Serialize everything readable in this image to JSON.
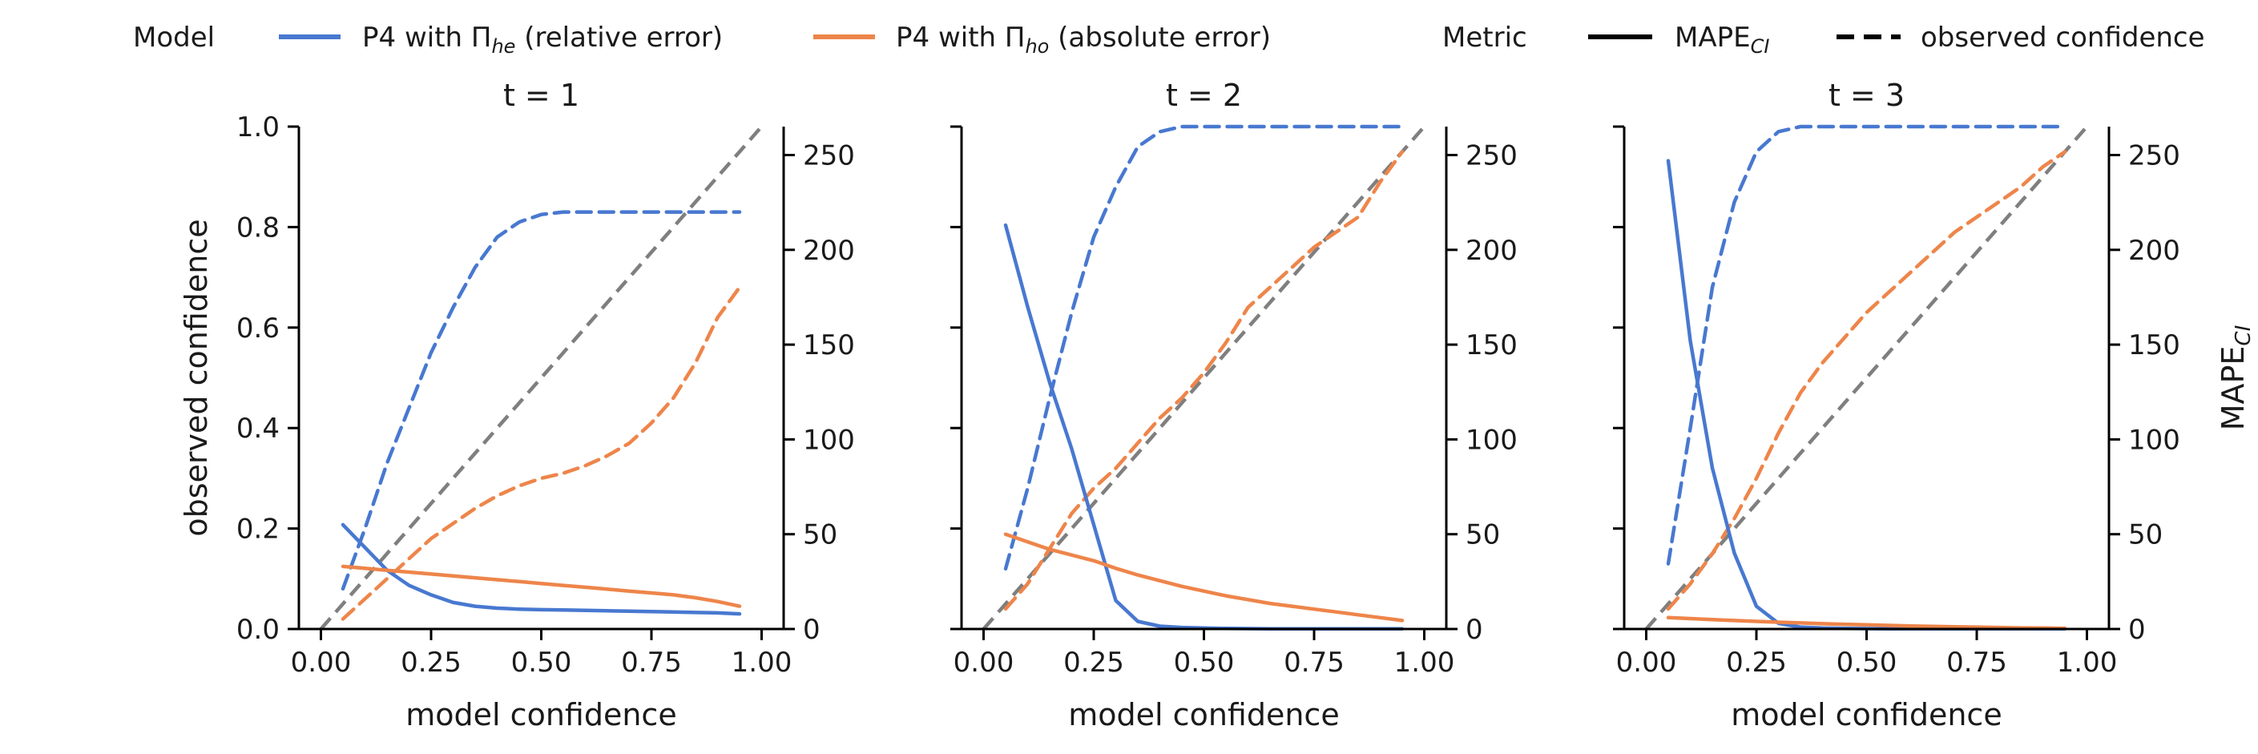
{
  "legend": {
    "model_title": "Model",
    "model_entries": [
      {
        "label": "P4 with Π",
        "sub": "he",
        "suffix": " (relative error)",
        "color": "#4878d0"
      },
      {
        "label": "P4 with Π",
        "sub": "ho",
        "suffix": " (absolute error)",
        "color": "#ee854a"
      }
    ],
    "metric_title": "Metric",
    "metric_entries": [
      {
        "label": "MAPE",
        "sub": "CI",
        "style": "solid"
      },
      {
        "label": "observed confidence",
        "style": "dashed"
      }
    ]
  },
  "colors": {
    "he": "#4878d0",
    "ho": "#ee854a",
    "diagonal": "#7f7f7f"
  },
  "chart_data": [
    {
      "type": "line",
      "title": "t = 1",
      "xlabel": "model confidence",
      "ylabel": "observed confidence",
      "ylabel_right": "",
      "xlim": [
        -0.05,
        1.05
      ],
      "ylim": [
        0,
        1
      ],
      "ylim_right": [
        0,
        265
      ],
      "xticks": [
        "0.00",
        "0.25",
        "0.50",
        "0.75",
        "1.00"
      ],
      "yticks": [
        "0.0",
        "0.2",
        "0.4",
        "0.6",
        "0.8",
        "1.0"
      ],
      "yticks_right": [
        "0",
        "50",
        "100",
        "150",
        "200",
        "250"
      ],
      "series": [
        {
          "model": "he",
          "metric": "observed confidence",
          "axis": "left",
          "x": [
            0.05,
            0.1,
            0.15,
            0.2,
            0.25,
            0.3,
            0.35,
            0.4,
            0.45,
            0.5,
            0.55,
            0.6,
            0.65,
            0.7,
            0.75,
            0.8,
            0.85,
            0.9,
            0.95
          ],
          "y": [
            0.08,
            0.2,
            0.33,
            0.44,
            0.55,
            0.64,
            0.72,
            0.78,
            0.81,
            0.825,
            0.83,
            0.83,
            0.83,
            0.83,
            0.83,
            0.83,
            0.83,
            0.83,
            0.83
          ]
        },
        {
          "model": "ho",
          "metric": "observed confidence",
          "axis": "left",
          "x": [
            0.05,
            0.1,
            0.15,
            0.2,
            0.25,
            0.3,
            0.35,
            0.4,
            0.45,
            0.5,
            0.55,
            0.6,
            0.65,
            0.7,
            0.75,
            0.8,
            0.85,
            0.9,
            0.95
          ],
          "y": [
            0.02,
            0.06,
            0.1,
            0.14,
            0.18,
            0.21,
            0.24,
            0.265,
            0.285,
            0.3,
            0.31,
            0.325,
            0.345,
            0.37,
            0.41,
            0.46,
            0.53,
            0.62,
            0.68
          ]
        },
        {
          "model": "he",
          "metric": "MAPE",
          "axis": "right",
          "x": [
            0.05,
            0.1,
            0.15,
            0.2,
            0.25,
            0.3,
            0.35,
            0.4,
            0.45,
            0.5,
            0.55,
            0.6,
            0.65,
            0.7,
            0.75,
            0.8,
            0.85,
            0.9,
            0.95
          ],
          "y": [
            55,
            43,
            31,
            23,
            18,
            14,
            12,
            11,
            10.5,
            10.2,
            10,
            9.8,
            9.6,
            9.4,
            9.2,
            9,
            8.7,
            8.5,
            8
          ]
        },
        {
          "model": "ho",
          "metric": "MAPE",
          "axis": "right",
          "x": [
            0.05,
            0.1,
            0.15,
            0.2,
            0.25,
            0.3,
            0.35,
            0.4,
            0.45,
            0.5,
            0.55,
            0.6,
            0.65,
            0.7,
            0.75,
            0.8,
            0.85,
            0.9,
            0.95
          ],
          "y": [
            33,
            32,
            31,
            30,
            29,
            28,
            27,
            26,
            25,
            24,
            23,
            22,
            21,
            20,
            19,
            18,
            16.5,
            14.5,
            12
          ]
        }
      ]
    },
    {
      "type": "line",
      "title": "t = 2",
      "xlabel": "model confidence",
      "ylabel": "",
      "ylabel_right": "",
      "xlim": [
        -0.05,
        1.05
      ],
      "ylim": [
        0,
        1
      ],
      "ylim_right": [
        0,
        265
      ],
      "xticks": [
        "0.00",
        "0.25",
        "0.50",
        "0.75",
        "1.00"
      ],
      "yticks": [],
      "yticks_right": [
        "0",
        "50",
        "100",
        "150",
        "200",
        "250"
      ],
      "series": [
        {
          "model": "he",
          "metric": "observed confidence",
          "axis": "left",
          "x": [
            0.05,
            0.1,
            0.15,
            0.2,
            0.25,
            0.3,
            0.35,
            0.4,
            0.45,
            0.5,
            0.55,
            0.6,
            0.65,
            0.7,
            0.75,
            0.8,
            0.85,
            0.9,
            0.95
          ],
          "y": [
            0.12,
            0.28,
            0.46,
            0.63,
            0.78,
            0.88,
            0.96,
            0.99,
            1.0,
            1.0,
            1.0,
            1.0,
            1.0,
            1.0,
            1.0,
            1.0,
            1.0,
            1.0,
            1.0
          ]
        },
        {
          "model": "ho",
          "metric": "observed confidence",
          "axis": "left",
          "x": [
            0.05,
            0.1,
            0.15,
            0.2,
            0.25,
            0.3,
            0.35,
            0.4,
            0.45,
            0.5,
            0.55,
            0.6,
            0.65,
            0.7,
            0.75,
            0.8,
            0.85,
            0.9,
            0.95
          ],
          "y": [
            0.04,
            0.09,
            0.16,
            0.23,
            0.28,
            0.32,
            0.37,
            0.42,
            0.46,
            0.51,
            0.57,
            0.64,
            0.68,
            0.72,
            0.76,
            0.79,
            0.82,
            0.89,
            0.95
          ]
        },
        {
          "model": "he",
          "metric": "MAPE",
          "axis": "right",
          "x": [
            0.05,
            0.1,
            0.15,
            0.2,
            0.25,
            0.3,
            0.35,
            0.4,
            0.45,
            0.5,
            0.55,
            0.6,
            0.65,
            0.7,
            0.75,
            0.8,
            0.85,
            0.9,
            0.95
          ],
          "y": [
            213,
            170,
            130,
            95,
            55,
            15,
            4,
            1.5,
            0.8,
            0.5,
            0.3,
            0.2,
            0.1,
            0.1,
            0.1,
            0.1,
            0.1,
            0.1,
            0.1
          ]
        },
        {
          "model": "ho",
          "metric": "MAPE",
          "axis": "right",
          "x": [
            0.05,
            0.1,
            0.15,
            0.2,
            0.25,
            0.3,
            0.35,
            0.4,
            0.45,
            0.5,
            0.55,
            0.6,
            0.65,
            0.7,
            0.75,
            0.8,
            0.85,
            0.9,
            0.95
          ],
          "y": [
            50,
            46,
            42,
            39,
            36,
            32,
            28.5,
            25.5,
            22.5,
            20,
            17.5,
            15.5,
            13.5,
            12,
            10.5,
            9,
            7.5,
            6,
            4.5
          ]
        }
      ]
    },
    {
      "type": "line",
      "title": "t = 3",
      "xlabel": "model confidence",
      "ylabel": "",
      "ylabel_right": "MAPE_CI",
      "xlim": [
        -0.05,
        1.05
      ],
      "ylim": [
        0,
        1
      ],
      "ylim_right": [
        0,
        265
      ],
      "xticks": [
        "0.00",
        "0.25",
        "0.50",
        "0.75",
        "1.00"
      ],
      "yticks": [],
      "yticks_right": [
        "0",
        "50",
        "100",
        "150",
        "200",
        "250"
      ],
      "series": [
        {
          "model": "he",
          "metric": "observed confidence",
          "axis": "left",
          "x": [
            0.05,
            0.1,
            0.15,
            0.2,
            0.25,
            0.3,
            0.35,
            0.4,
            0.45,
            0.5,
            0.55,
            0.6,
            0.65,
            0.7,
            0.75,
            0.8,
            0.85,
            0.9,
            0.95
          ],
          "y": [
            0.13,
            0.4,
            0.68,
            0.85,
            0.95,
            0.99,
            1.0,
            1.0,
            1.0,
            1.0,
            1.0,
            1.0,
            1.0,
            1.0,
            1.0,
            1.0,
            1.0,
            1.0,
            1.0
          ]
        },
        {
          "model": "ho",
          "metric": "observed confidence",
          "axis": "left",
          "x": [
            0.05,
            0.1,
            0.15,
            0.2,
            0.25,
            0.3,
            0.35,
            0.4,
            0.45,
            0.5,
            0.55,
            0.6,
            0.65,
            0.7,
            0.75,
            0.8,
            0.85,
            0.9,
            0.95
          ],
          "y": [
            0.04,
            0.09,
            0.15,
            0.22,
            0.3,
            0.39,
            0.47,
            0.53,
            0.58,
            0.63,
            0.67,
            0.71,
            0.75,
            0.79,
            0.82,
            0.85,
            0.88,
            0.92,
            0.95
          ]
        },
        {
          "model": "he",
          "metric": "MAPE",
          "axis": "right",
          "x": [
            0.05,
            0.1,
            0.15,
            0.2,
            0.25,
            0.3,
            0.35,
            0.4,
            0.45,
            0.5,
            0.55,
            0.6,
            0.65,
            0.7,
            0.75,
            0.8,
            0.85,
            0.9,
            0.95
          ],
          "y": [
            247,
            152,
            85,
            40,
            12,
            3,
            1,
            0.5,
            0.3,
            0.2,
            0.1,
            0.1,
            0.1,
            0.1,
            0.1,
            0.1,
            0.1,
            0.1,
            0.1
          ]
        },
        {
          "model": "ho",
          "metric": "MAPE",
          "axis": "right",
          "x": [
            0.05,
            0.1,
            0.15,
            0.2,
            0.25,
            0.3,
            0.35,
            0.4,
            0.45,
            0.5,
            0.55,
            0.6,
            0.65,
            0.7,
            0.75,
            0.8,
            0.85,
            0.9,
            0.95
          ],
          "y": [
            6,
            5.5,
            5,
            4.5,
            4,
            3.6,
            3.2,
            2.8,
            2.5,
            2.2,
            1.9,
            1.6,
            1.4,
            1.2,
            1,
            0.8,
            0.6,
            0.5,
            0.4
          ]
        }
      ]
    }
  ]
}
